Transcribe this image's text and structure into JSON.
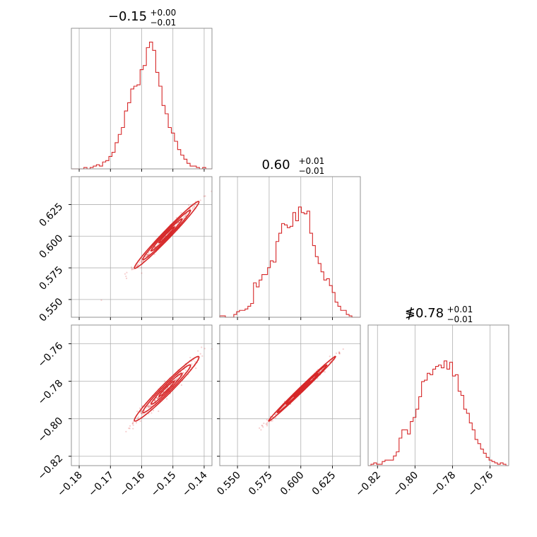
{
  "figure": {
    "type": "corner-plot",
    "color": "#d62728"
  },
  "chart_data": {
    "type": "corner",
    "parameters": [
      {
        "index": 0,
        "title": {
          "value": "−0.15",
          "plus": "+0.00",
          "minus": "−0.01"
        },
        "range": [
          -0.1825,
          -0.1375
        ],
        "ticks": [
          -0.18,
          -0.17,
          -0.16,
          -0.15,
          -0.14
        ],
        "tick_labels": [
          "−0.18",
          "−0.17",
          "−0.16",
          "−0.15",
          "−0.14"
        ],
        "median": -0.152,
        "sigma": 0.0045
      },
      {
        "index": 1,
        "title": {
          "value": "0.60",
          "plus": "+0.01",
          "minus": "−0.01"
        },
        "range": [
          0.536,
          0.647
        ],
        "ticks": [
          0.55,
          0.575,
          0.6,
          0.625
        ],
        "tick_labels": [
          "0.550",
          "0.575",
          "0.600",
          "0.625"
        ],
        "median": 0.601,
        "sigma": 0.0115
      },
      {
        "index": 2,
        "title": {
          "value": "≸0.78",
          "plus": "+0.01",
          "minus": "−0.01"
        },
        "range": [
          -0.825,
          -0.75
        ],
        "ticks": [
          -0.82,
          -0.8,
          -0.78,
          -0.76
        ],
        "tick_labels": [
          "−0.82",
          "−0.80",
          "−0.78",
          "−0.76"
        ],
        "median": -0.784,
        "sigma": 0.0075
      }
    ],
    "histogram_shapes": {
      "p0": [
        0,
        0,
        0,
        0,
        0.01,
        0,
        0.01,
        0.02,
        0.03,
        0.02,
        0.05,
        0.06,
        0.09,
        0.12,
        0.19,
        0.25,
        0.3,
        0.42,
        0.48,
        0.58,
        0.6,
        0.61,
        0.72,
        0.75,
        0.88,
        0.92,
        0.86,
        0.7,
        0.6,
        0.46,
        0.4,
        0.3,
        0.26,
        0.2,
        0.14,
        0.1,
        0.07,
        0.04,
        0.02,
        0.02,
        0.01,
        0,
        0.01,
        0,
        0
      ],
      "p1": [
        0.01,
        0.01,
        0,
        0,
        0,
        0.02,
        0.04,
        0.05,
        0.05,
        0.06,
        0.08,
        0.1,
        0.25,
        0.22,
        0.27,
        0.31,
        0.31,
        0.36,
        0.41,
        0.4,
        0.55,
        0.61,
        0.68,
        0.67,
        0.65,
        0.66,
        0.76,
        0.7,
        0.8,
        0.76,
        0.75,
        0.77,
        0.61,
        0.52,
        0.44,
        0.39,
        0.33,
        0.27,
        0.28,
        0.23,
        0.18,
        0.11,
        0.08,
        0.05,
        0.05,
        0.02,
        0.01,
        0,
        0,
        0
      ],
      "p2": [
        0,
        0.01,
        0.02,
        0.01,
        0.01,
        0.03,
        0.04,
        0.04,
        0.04,
        0.07,
        0.1,
        0.2,
        0.26,
        0.26,
        0.23,
        0.32,
        0.35,
        0.41,
        0.5,
        0.61,
        0.62,
        0.67,
        0.66,
        0.7,
        0.72,
        0.73,
        0.71,
        0.76,
        0.7,
        0.75,
        0.65,
        0.66,
        0.54,
        0.51,
        0.41,
        0.38,
        0.31,
        0.26,
        0.19,
        0.16,
        0.12,
        0.09,
        0.06,
        0.04,
        0.03,
        0.02,
        0.01,
        0.02,
        0.01,
        0
      ]
    },
    "correlations": {
      "p0_p1": 0.985,
      "p0_p2": 0.975,
      "p1_p2": 0.995
    },
    "grid": true,
    "legend": "none"
  }
}
